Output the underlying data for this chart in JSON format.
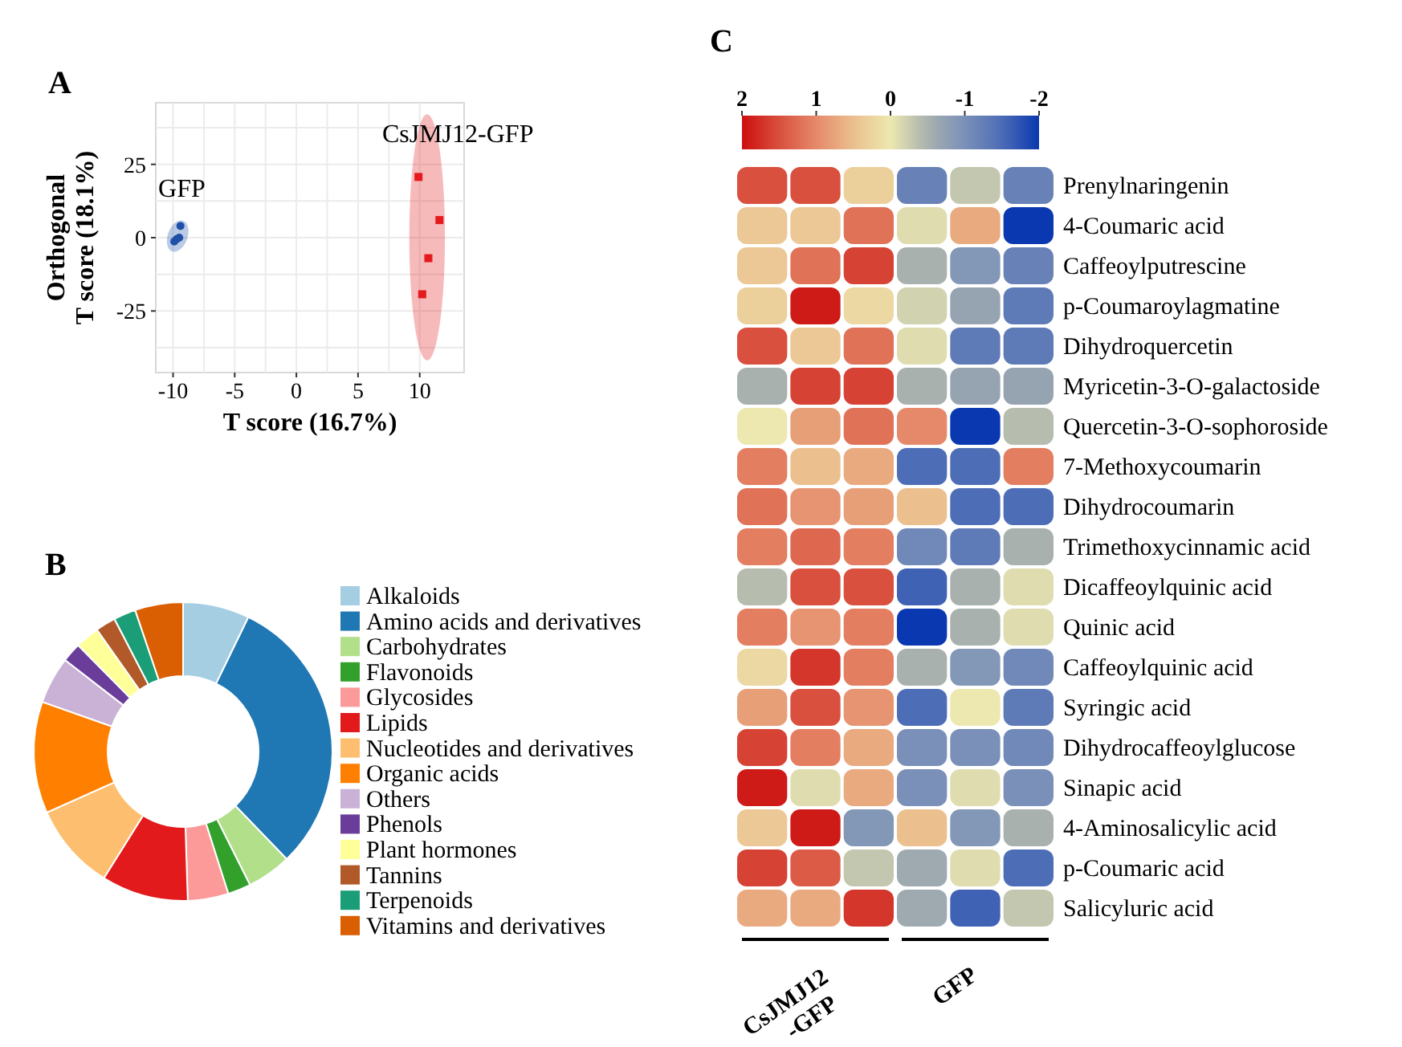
{
  "chart_data": [
    {
      "type": "scatter",
      "title": "A",
      "xlabel": "T score (16.7%)",
      "ylabel": "Orthogonal\nT score (18.1%)",
      "xlim": [
        -11.4,
        13.6
      ],
      "ylim": [
        -46,
        46
      ],
      "xticks": [
        -10,
        -5,
        0,
        5,
        10
      ],
      "yticks": [
        -25,
        0,
        25
      ],
      "grid": true,
      "series": [
        {
          "name": "GFP",
          "color": "#1f4fa8",
          "marker": "circle",
          "x": [
            -9.4,
            -9.5,
            -9.9,
            -9.7
          ],
          "values": [
            4,
            0,
            -1.3,
            -0.5
          ]
        },
        {
          "name": "CsJMJ12-GFP",
          "color": "#e41a1c",
          "marker": "square",
          "x": [
            9.9,
            11.6,
            10.7,
            10.2
          ],
          "values": [
            20.7,
            6,
            -7,
            -19.3
          ]
        }
      ]
    },
    {
      "type": "donut",
      "title": "B",
      "legend": "right",
      "categories": [
        "Alkaloids",
        "Amino acids and derivatives",
        "Carbohydrates",
        "Flavonoids",
        "Glycosides",
        "Lipids",
        "Nucleotides and derivatives",
        "Organic acids",
        "Others",
        "Phenols",
        "Plant hormones",
        "Tannins",
        "Terpenoids",
        "Vitamins and derivatives"
      ],
      "values": [
        7.2,
        30.6,
        4.8,
        2.5,
        4.4,
        9.4,
        9.4,
        12.1,
        5.1,
        2.1,
        2.6,
        2.2,
        2.4,
        5.2
      ],
      "colors": [
        "#a6cee3",
        "#1f78b4",
        "#b2df8a",
        "#33a02c",
        "#fb9a99",
        "#e31a1c",
        "#fdbf6f",
        "#ff7f00",
        "#cab2d6",
        "#6a3d9a",
        "#ffff99",
        "#b15928",
        "#1b9e77",
        "#d95f02"
      ]
    },
    {
      "type": "heatmap",
      "title": "C",
      "clim": [
        2,
        -2
      ],
      "cticks": [
        2,
        1,
        0,
        -1,
        -2
      ],
      "categories": [
        null,
        null,
        null,
        null,
        null,
        null
      ],
      "y_categories": [
        "Prenylnaringenin",
        "4-Coumaric acid",
        "Caffeoylputrescine",
        "p-Coumaroylagmatine",
        "Dihydroquercetin",
        "Myricetin-3-O-galactoside",
        "Quercetin-3-O-sophoroside",
        "7-Methoxycoumarin",
        "Dihydrocoumarin",
        "Trimethoxycinnamic acid",
        "Dicaffeoylquinic acid",
        "Quinic acid",
        "Caffeoylquinic acid",
        "Syringic acid",
        "Dihydrocaffeoylglucose",
        "Sinapic acid",
        "4-Aminosalicylic acid",
        "p-Coumaric acid",
        "Salicyluric acid"
      ],
      "cells": [
        [
          1.5,
          1.5,
          0.3,
          -1.2,
          -0.3,
          -1.2
        ],
        [
          0.4,
          0.4,
          1.2,
          -0.1,
          0.7,
          -2
        ],
        [
          0.4,
          1.2,
          1.6,
          -0.5,
          -0.9,
          -1.2
        ],
        [
          0.3,
          1.9,
          0.2,
          -0.2,
          -0.7,
          -1.3
        ],
        [
          1.5,
          0.4,
          1.2,
          -0.1,
          -1.3,
          -1.3
        ],
        [
          -0.5,
          1.6,
          1.6,
          -0.5,
          -0.7,
          -0.7
        ],
        [
          0,
          0.8,
          1.2,
          1,
          -2,
          -0.4
        ],
        [
          1.1,
          0.5,
          0.7,
          -1.5,
          -1.5,
          1.1
        ],
        [
          1.2,
          0.9,
          0.8,
          0.5,
          -1.5,
          -1.5
        ],
        [
          1.1,
          1.3,
          1.1,
          -1.1,
          -1.3,
          -0.5
        ],
        [
          -0.4,
          1.5,
          1.5,
          -1.6,
          -0.5,
          -0.1
        ],
        [
          1.1,
          0.9,
          1.1,
          -2,
          -0.5,
          -0.1
        ],
        [
          0.2,
          1.7,
          1.1,
          -0.5,
          -0.9,
          -1.1
        ],
        [
          0.8,
          1.5,
          0.9,
          -1.5,
          0,
          -1.3
        ],
        [
          1.6,
          1.1,
          0.7,
          -1,
          -1,
          -1.1
        ],
        [
          1.9,
          -0.1,
          0.7,
          -1,
          -0.1,
          -1
        ],
        [
          0.4,
          1.9,
          -0.9,
          0.5,
          -0.9,
          -0.5
        ],
        [
          1.6,
          1.4,
          -0.3,
          -0.6,
          -0.1,
          -1.5
        ],
        [
          0.7,
          0.7,
          1.7,
          -0.6,
          -1.6,
          -0.3
        ]
      ],
      "annotations": [
        "CsJMJ12\n-GFP",
        "GFP"
      ]
    }
  ]
}
